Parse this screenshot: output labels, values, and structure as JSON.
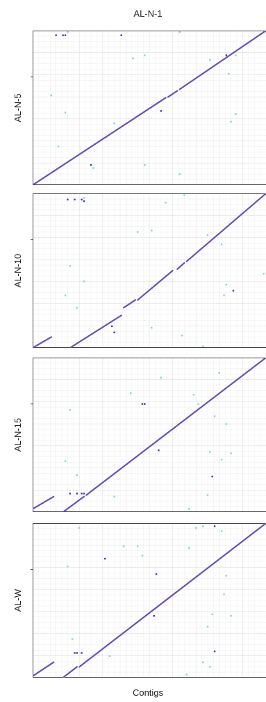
{
  "chart_data": {
    "type": "scatter",
    "title": "AL-N-1",
    "xlabel": "Contigs",
    "xlim": [
      0,
      100
    ],
    "ylim": [
      0,
      100
    ],
    "grid": true,
    "colors": {
      "line": "#6a4fb6",
      "dot_cyan": "#7fd6d9",
      "dot_dark": "#4a3a9c",
      "grid_minor": "#efefef",
      "grid_major": "#dedede",
      "frame": "#444444"
    },
    "panels": [
      {
        "ylabel": "AL-N-5",
        "segments": [
          [
            0,
            0,
            57,
            56.5
          ],
          [
            58,
            57,
            62,
            61
          ],
          [
            63,
            62,
            100,
            100
          ]
        ],
        "points": [
          {
            "x": 10,
            "y": 97,
            "c": "dark"
          },
          {
            "x": 13,
            "y": 97,
            "c": "dark"
          },
          {
            "x": 14,
            "y": 97,
            "c": "dark"
          },
          {
            "x": 15,
            "y": 99,
            "c": "cyan"
          },
          {
            "x": 38,
            "y": 97,
            "c": "dark"
          },
          {
            "x": 63,
            "y": 99,
            "c": "cyan"
          },
          {
            "x": 8,
            "y": 58,
            "c": "cyan"
          },
          {
            "x": 43,
            "y": 82,
            "c": "cyan"
          },
          {
            "x": 48,
            "y": 84,
            "c": "cyan"
          },
          {
            "x": 76,
            "y": 81,
            "c": "cyan"
          },
          {
            "x": 83,
            "y": 84,
            "c": "dark"
          },
          {
            "x": 87,
            "y": 84,
            "c": "cyan"
          },
          {
            "x": 84,
            "y": 72,
            "c": "cyan"
          },
          {
            "x": 14,
            "y": 47,
            "c": "cyan"
          },
          {
            "x": 35,
            "y": 40,
            "c": "cyan"
          },
          {
            "x": 55,
            "y": 48,
            "c": "dark"
          },
          {
            "x": 87,
            "y": 46,
            "c": "cyan"
          },
          {
            "x": 85,
            "y": 41,
            "c": "cyan"
          },
          {
            "x": 11,
            "y": 25,
            "c": "cyan"
          },
          {
            "x": 25,
            "y": 13,
            "c": "dark"
          },
          {
            "x": 26,
            "y": 11,
            "c": "cyan"
          },
          {
            "x": 48,
            "y": 13,
            "c": "cyan"
          },
          {
            "x": 63,
            "y": 7,
            "c": "cyan"
          }
        ]
      },
      {
        "ylabel": "AL-N-10",
        "segments": [
          [
            0,
            0,
            8,
            7
          ],
          [
            16,
            0,
            38,
            21
          ],
          [
            39,
            26,
            44,
            31
          ],
          [
            45,
            31,
            60,
            50
          ],
          [
            62,
            51,
            65,
            55
          ],
          [
            66,
            56,
            100,
            100
          ]
        ],
        "points": [
          {
            "x": 15,
            "y": 96,
            "c": "dark"
          },
          {
            "x": 18,
            "y": 96,
            "c": "dark"
          },
          {
            "x": 21,
            "y": 96,
            "c": "dark"
          },
          {
            "x": 22,
            "y": 95,
            "c": "dark"
          },
          {
            "x": 22,
            "y": 97,
            "c": "cyan"
          },
          {
            "x": 57,
            "y": 94,
            "c": "cyan"
          },
          {
            "x": 65,
            "y": 99,
            "c": "cyan"
          },
          {
            "x": 45,
            "y": 75,
            "c": "cyan"
          },
          {
            "x": 51,
            "y": 76,
            "c": "cyan"
          },
          {
            "x": 75,
            "y": 73,
            "c": "cyan"
          },
          {
            "x": 81,
            "y": 67,
            "c": "cyan"
          },
          {
            "x": 99,
            "y": 48,
            "c": "cyan"
          },
          {
            "x": 16,
            "y": 53,
            "c": "cyan"
          },
          {
            "x": 22,
            "y": 43,
            "c": "cyan"
          },
          {
            "x": 14,
            "y": 34,
            "c": "cyan"
          },
          {
            "x": 19,
            "y": 26,
            "c": "cyan"
          },
          {
            "x": 34,
            "y": 14,
            "c": "dark"
          },
          {
            "x": 35,
            "y": 10,
            "c": "dark"
          },
          {
            "x": 51,
            "y": 13,
            "c": "cyan"
          },
          {
            "x": 64,
            "y": 8,
            "c": "cyan"
          },
          {
            "x": 73,
            "y": 1,
            "c": "cyan"
          },
          {
            "x": 82,
            "y": 34,
            "c": "cyan"
          },
          {
            "x": 83,
            "y": 41,
            "c": "cyan"
          },
          {
            "x": 86,
            "y": 37,
            "c": "dark"
          }
        ]
      },
      {
        "ylabel": "AL-N-15",
        "segments": [
          [
            0,
            2,
            9,
            10
          ],
          [
            13,
            0,
            22,
            10
          ],
          [
            23,
            11,
            100,
            100
          ]
        ],
        "points": [
          {
            "x": 16,
            "y": 66,
            "c": "cyan"
          },
          {
            "x": 42,
            "y": 77,
            "c": "cyan"
          },
          {
            "x": 47,
            "y": 70,
            "c": "dark"
          },
          {
            "x": 48,
            "y": 70,
            "c": "dark"
          },
          {
            "x": 55,
            "y": 87,
            "c": "cyan"
          },
          {
            "x": 69,
            "y": 76,
            "c": "cyan"
          },
          {
            "x": 71,
            "y": 70,
            "c": "cyan"
          },
          {
            "x": 80,
            "y": 90,
            "c": "cyan"
          },
          {
            "x": 78,
            "y": 62,
            "c": "cyan"
          },
          {
            "x": 83,
            "y": 57,
            "c": "cyan"
          },
          {
            "x": 54,
            "y": 40,
            "c": "dark"
          },
          {
            "x": 14,
            "y": 33,
            "c": "cyan"
          },
          {
            "x": 19,
            "y": 24,
            "c": "cyan"
          },
          {
            "x": 16,
            "y": 12,
            "c": "dark"
          },
          {
            "x": 19,
            "y": 12,
            "c": "dark"
          },
          {
            "x": 21,
            "y": 12,
            "c": "dark"
          },
          {
            "x": 22,
            "y": 12,
            "c": "dark"
          },
          {
            "x": 35,
            "y": 10,
            "c": "cyan"
          },
          {
            "x": 76,
            "y": 39,
            "c": "cyan"
          },
          {
            "x": 81,
            "y": 34,
            "c": "cyan"
          },
          {
            "x": 85,
            "y": 38,
            "c": "cyan"
          },
          {
            "x": 77,
            "y": 23,
            "c": "dark"
          },
          {
            "x": 75,
            "y": 11,
            "c": "cyan"
          },
          {
            "x": 67,
            "y": 2,
            "c": "cyan"
          }
        ]
      },
      {
        "ylabel": "AL-W",
        "segments": [
          [
            0,
            1,
            9,
            10
          ],
          [
            13,
            0,
            19,
            7
          ],
          [
            20,
            7,
            100,
            100
          ]
        ],
        "points": [
          {
            "x": 20,
            "y": 97,
            "c": "cyan"
          },
          {
            "x": 70,
            "y": 97,
            "c": "cyan"
          },
          {
            "x": 73,
            "y": 98,
            "c": "cyan"
          },
          {
            "x": 78,
            "y": 98,
            "c": "dark"
          },
          {
            "x": 81,
            "y": 95,
            "c": "cyan"
          },
          {
            "x": 39,
            "y": 85,
            "c": "cyan"
          },
          {
            "x": 45,
            "y": 85,
            "c": "cyan"
          },
          {
            "x": 47,
            "y": 79,
            "c": "cyan"
          },
          {
            "x": 67,
            "y": 84,
            "c": "cyan"
          },
          {
            "x": 31,
            "y": 77,
            "c": "dark"
          },
          {
            "x": 15,
            "y": 72,
            "c": "cyan"
          },
          {
            "x": 53,
            "y": 67,
            "c": "dark"
          },
          {
            "x": 83,
            "y": 66,
            "c": "cyan"
          },
          {
            "x": 82,
            "y": 54,
            "c": "cyan"
          },
          {
            "x": 52,
            "y": 40,
            "c": "dark"
          },
          {
            "x": 77,
            "y": 41,
            "c": "cyan"
          },
          {
            "x": 85,
            "y": 40,
            "c": "cyan"
          },
          {
            "x": 75,
            "y": 33,
            "c": "cyan"
          },
          {
            "x": 17,
            "y": 25,
            "c": "cyan"
          },
          {
            "x": 18,
            "y": 16,
            "c": "dark"
          },
          {
            "x": 19,
            "y": 16,
            "c": "dark"
          },
          {
            "x": 21,
            "y": 16,
            "c": "dark"
          },
          {
            "x": 33,
            "y": 14,
            "c": "cyan"
          },
          {
            "x": 78,
            "y": 17,
            "c": "dark"
          },
          {
            "x": 73,
            "y": 10,
            "c": "cyan"
          },
          {
            "x": 76,
            "y": 7,
            "c": "cyan"
          },
          {
            "x": 66,
            "y": 2,
            "c": "cyan"
          }
        ]
      }
    ]
  }
}
